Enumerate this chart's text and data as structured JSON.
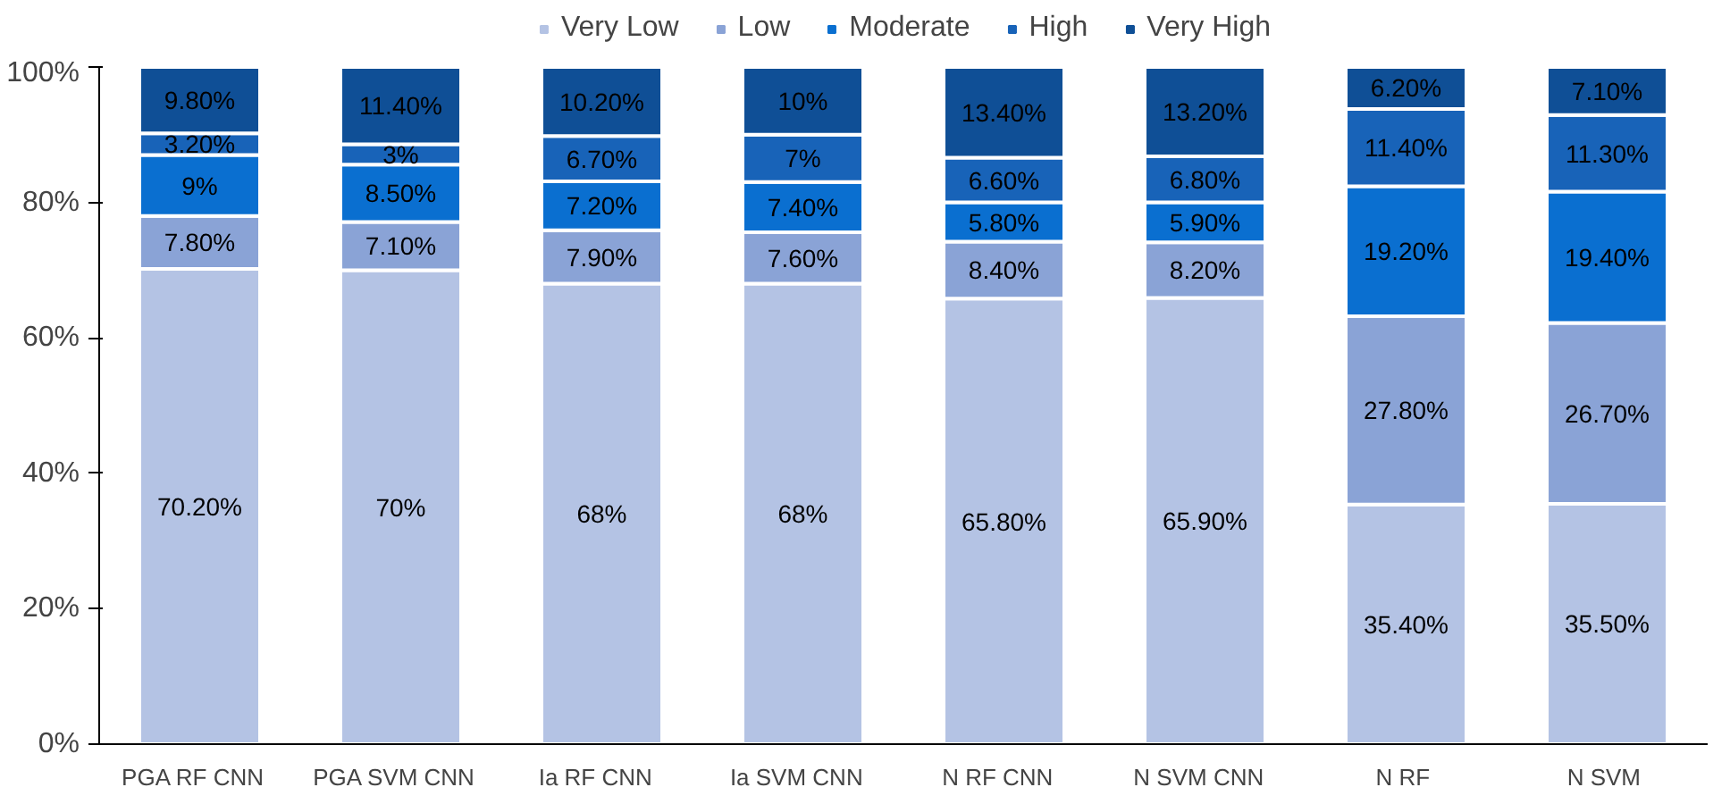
{
  "chart_data": {
    "type": "bar",
    "stacked": true,
    "categories": [
      "PGA  RF  CNN",
      "PGA  SVM  CNN",
      "Ia  RF  CNN",
      "Ia  SVM  CNN",
      "N  RF  CNN",
      "N  SVM  CNN",
      "N  RF",
      "N  SVM"
    ],
    "ylim": [
      0,
      100
    ],
    "yticks": [
      {
        "value": 0,
        "label": "0%"
      },
      {
        "value": 20,
        "label": "20%"
      },
      {
        "value": 40,
        "label": "40%"
      },
      {
        "value": 60,
        "label": "60%"
      },
      {
        "value": 80,
        "label": "80%"
      },
      {
        "value": 100,
        "label": "100%"
      }
    ],
    "legend": "top",
    "grid": false,
    "series": [
      {
        "name": "Very Low",
        "color": "#b4c3e4",
        "values": [
          70.2,
          70,
          68,
          68,
          65.8,
          65.9,
          35.4,
          35.5
        ],
        "value_labels": [
          "70.20%",
          "70%",
          "68%",
          "68%",
          "65.80%",
          "65.90%",
          "35.40%",
          "35.50%"
        ]
      },
      {
        "name": "Low",
        "color": "#8aa3d6",
        "values": [
          7.8,
          7.1,
          7.9,
          7.6,
          8.4,
          8.2,
          27.8,
          26.7
        ],
        "value_labels": [
          "7.80%",
          "7.10%",
          "7.90%",
          "7.60%",
          "8.40%",
          "8.20%",
          "27.80%",
          "26.70%"
        ]
      },
      {
        "name": "Moderate",
        "color": "#0a6fd0",
        "values": [
          9,
          8.5,
          7.2,
          7.4,
          5.8,
          5.9,
          19.2,
          19.4
        ],
        "value_labels": [
          "9%",
          "8.50%",
          "7.20%",
          "7.40%",
          "5.80%",
          "5.90%",
          "19.20%",
          "19.40%"
        ]
      },
      {
        "name": "High",
        "color": "#1863b8",
        "values": [
          3.2,
          3,
          6.7,
          7,
          6.6,
          6.8,
          11.4,
          11.3
        ],
        "value_labels": [
          "3.20%",
          "3%",
          "6.70%",
          "7%",
          "6.60%",
          "6.80%",
          "11.40%",
          "11.30%"
        ]
      },
      {
        "name": "Very High",
        "color": "#0f4f96",
        "values": [
          9.8,
          11.4,
          10.2,
          10,
          13.4,
          13.2,
          6.2,
          7.1
        ],
        "value_labels": [
          "9.80%",
          "11.40%",
          "10.20%",
          "10%",
          "13.40%",
          "13.20%",
          "6.20%",
          "7.10%"
        ]
      }
    ]
  }
}
